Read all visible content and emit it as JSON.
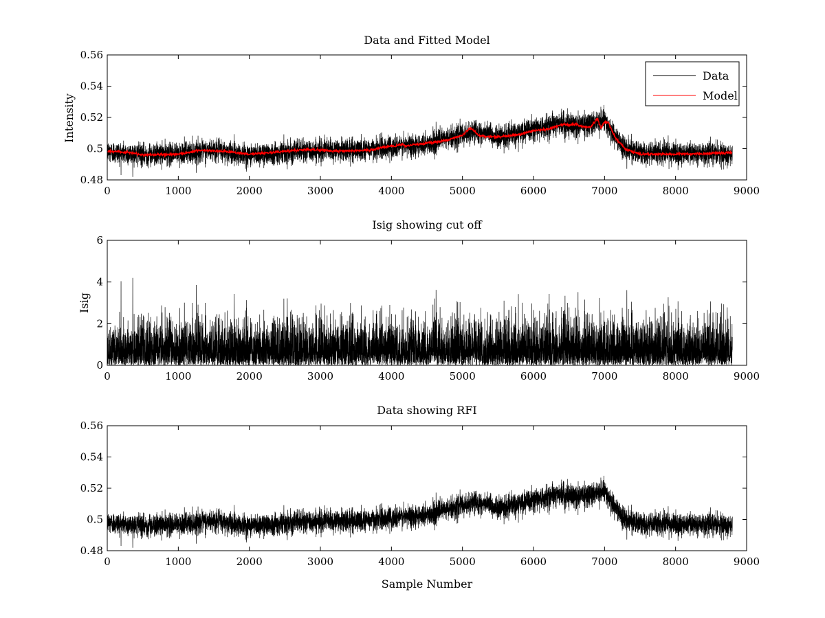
{
  "figure": {
    "subplots": [
      "Data and Fitted Model",
      "Isig showing cut off",
      "Data showing RFI"
    ]
  },
  "chart_data": [
    {
      "type": "line",
      "title": "Data and Fitted Model",
      "xlabel": "",
      "ylabel": "Intensity",
      "xlim": [
        0,
        9000
      ],
      "ylim": [
        0.48,
        0.56
      ],
      "xticks": [
        0,
        1000,
        2000,
        3000,
        4000,
        5000,
        6000,
        7000,
        8000,
        9000
      ],
      "xtick_labels": [
        "0",
        "1000",
        "2000",
        "3000",
        "4000",
        "5000",
        "6000",
        "7000",
        "8000",
        "9000"
      ],
      "yticks": [
        0.48,
        0.5,
        0.52,
        0.54,
        0.56
      ],
      "ytick_labels": [
        "0.48",
        "0.5",
        "0.52",
        "0.54",
        "0.56"
      ],
      "legend": {
        "position": "top-right",
        "entries": [
          "Data",
          "Model"
        ]
      },
      "series": [
        {
          "name": "Data",
          "color": "#000000",
          "n_samples": 8800,
          "noise_sd": 0.0035,
          "baseline": {
            "x": [
              0,
              500,
              1000,
              1500,
              2000,
              2500,
              3000,
              3500,
              4000,
              4500,
              5000,
              5200,
              5500,
              6000,
              6300,
              6600,
              6900,
              7000,
              7100,
              7300,
              7500,
              8000,
              8500,
              8800
            ],
            "y": [
              0.498,
              0.496,
              0.497,
              0.499,
              0.496,
              0.498,
              0.499,
              0.499,
              0.501,
              0.503,
              0.509,
              0.511,
              0.507,
              0.512,
              0.516,
              0.515,
              0.517,
              0.519,
              0.51,
              0.5,
              0.497,
              0.497,
              0.497,
              0.497
            ]
          }
        },
        {
          "name": "Model",
          "color": "#ff0000",
          "x": [
            0,
            300,
            500,
            1000,
            1300,
            1600,
            2000,
            2300,
            2800,
            3200,
            3700,
            3950,
            4050,
            4150,
            4200,
            4300,
            4500,
            4800,
            5000,
            5100,
            5130,
            5250,
            5500,
            5800,
            6000,
            6200,
            6400,
            6600,
            6700,
            6800,
            6900,
            6950,
            7000,
            7050,
            7150,
            7300,
            7500,
            8000,
            8500,
            8800
          ],
          "y": [
            0.4985,
            0.4975,
            0.496,
            0.4965,
            0.499,
            0.4985,
            0.4965,
            0.4975,
            0.4995,
            0.4985,
            0.499,
            0.5015,
            0.5015,
            0.503,
            0.5015,
            0.5025,
            0.5035,
            0.5055,
            0.5085,
            0.513,
            0.5125,
            0.508,
            0.5075,
            0.509,
            0.5115,
            0.5125,
            0.5155,
            0.5155,
            0.514,
            0.5135,
            0.5195,
            0.513,
            0.517,
            0.517,
            0.507,
            0.4995,
            0.4965,
            0.4965,
            0.497,
            0.4975
          ]
        }
      ]
    },
    {
      "type": "line",
      "title": "Isig showing cut off",
      "xlabel": "",
      "ylabel": "Isig",
      "xlim": [
        0,
        9000
      ],
      "ylim": [
        0,
        6
      ],
      "xticks": [
        0,
        1000,
        2000,
        3000,
        4000,
        5000,
        6000,
        7000,
        8000,
        9000
      ],
      "xtick_labels": [
        "0",
        "1000",
        "2000",
        "3000",
        "4000",
        "5000",
        "6000",
        "7000",
        "8000",
        "9000"
      ],
      "yticks": [
        0,
        2,
        4,
        6
      ],
      "ytick_labels": [
        "0",
        "2",
        "4",
        "6"
      ],
      "series": [
        {
          "name": "Isig",
          "color": "#000000",
          "n_samples": 8800,
          "distribution": "absolute normalized residual",
          "typical_max": 3.6
        }
      ]
    },
    {
      "type": "line",
      "title": "Data showing RFI",
      "xlabel": "Sample Number",
      "ylabel": "",
      "xlim": [
        0,
        9000
      ],
      "ylim": [
        0.48,
        0.56
      ],
      "xticks": [
        0,
        1000,
        2000,
        3000,
        4000,
        5000,
        6000,
        7000,
        8000,
        9000
      ],
      "xtick_labels": [
        "0",
        "1000",
        "2000",
        "3000",
        "4000",
        "5000",
        "6000",
        "7000",
        "8000",
        "9000"
      ],
      "yticks": [
        0.48,
        0.5,
        0.52,
        0.54,
        0.56
      ],
      "ytick_labels": [
        "0.48",
        "0.5",
        "0.52",
        "0.54",
        "0.56"
      ],
      "series": [
        {
          "name": "Data",
          "color": "#000000",
          "n_samples": 8800,
          "noise_sd": 0.0035,
          "same_as": "Data and Fitted Model / Data"
        }
      ]
    }
  ]
}
